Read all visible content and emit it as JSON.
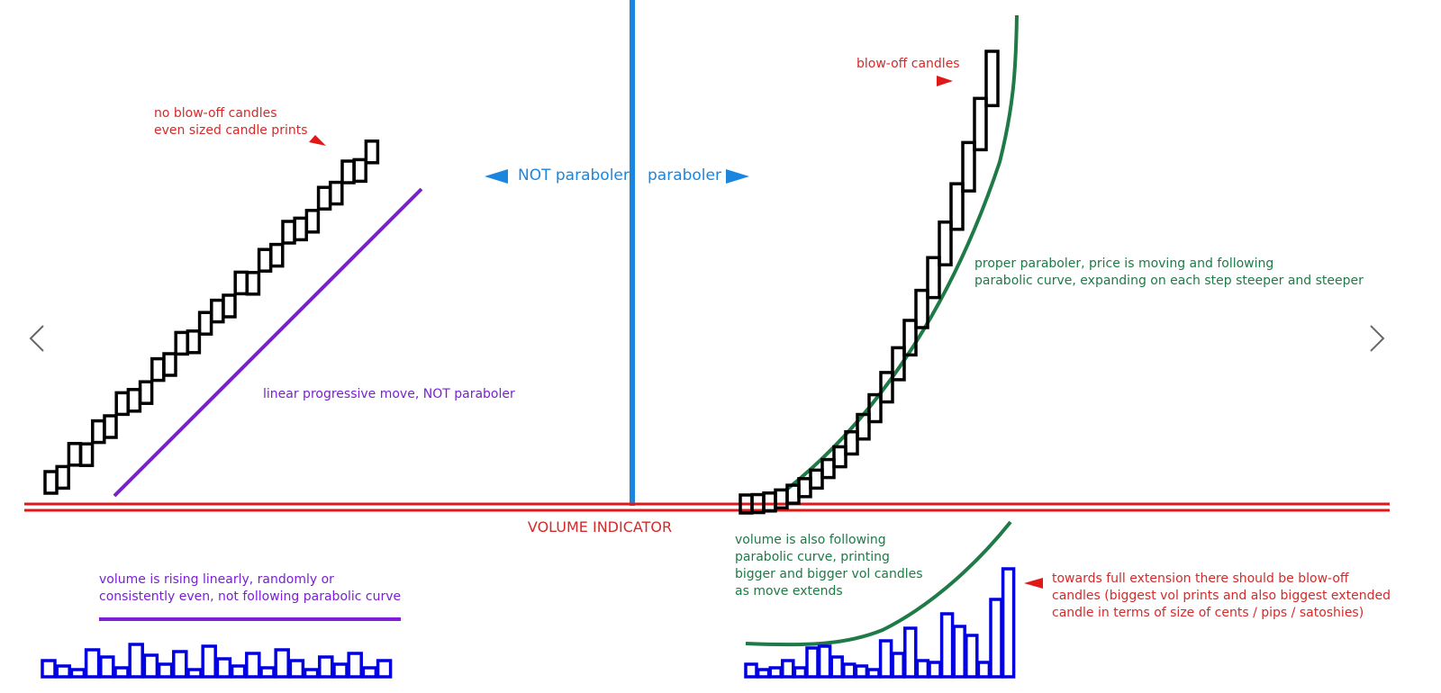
{
  "left_note": [
    "no blow-off candles",
    "even sized candle prints"
  ],
  "left_label": "NOT paraboler",
  "right_label": "paraboler",
  "blowoff_note": "blow-off candles",
  "proper_note": [
    "proper paraboler, price is moving and following",
    "parabolic curve, expanding on each step steeper and steeper"
  ],
  "linear_note": "linear progressive move, NOT paraboler",
  "volume_title": "VOLUME INDICATOR",
  "volume_right_note": [
    "volume is also following",
    "parabolic curve, printing",
    "bigger and bigger vol candles",
    "as move extends"
  ],
  "volume_left_note": [
    "volume is rising linearly, randomly or",
    "consistently even, not following parabolic curve"
  ],
  "extension_note": [
    "towards full extension there should be blow-off",
    "candles (biggest vol prints and also biggest extended",
    "candle in terms of size of cents / pips / satoshies)"
  ]
}
